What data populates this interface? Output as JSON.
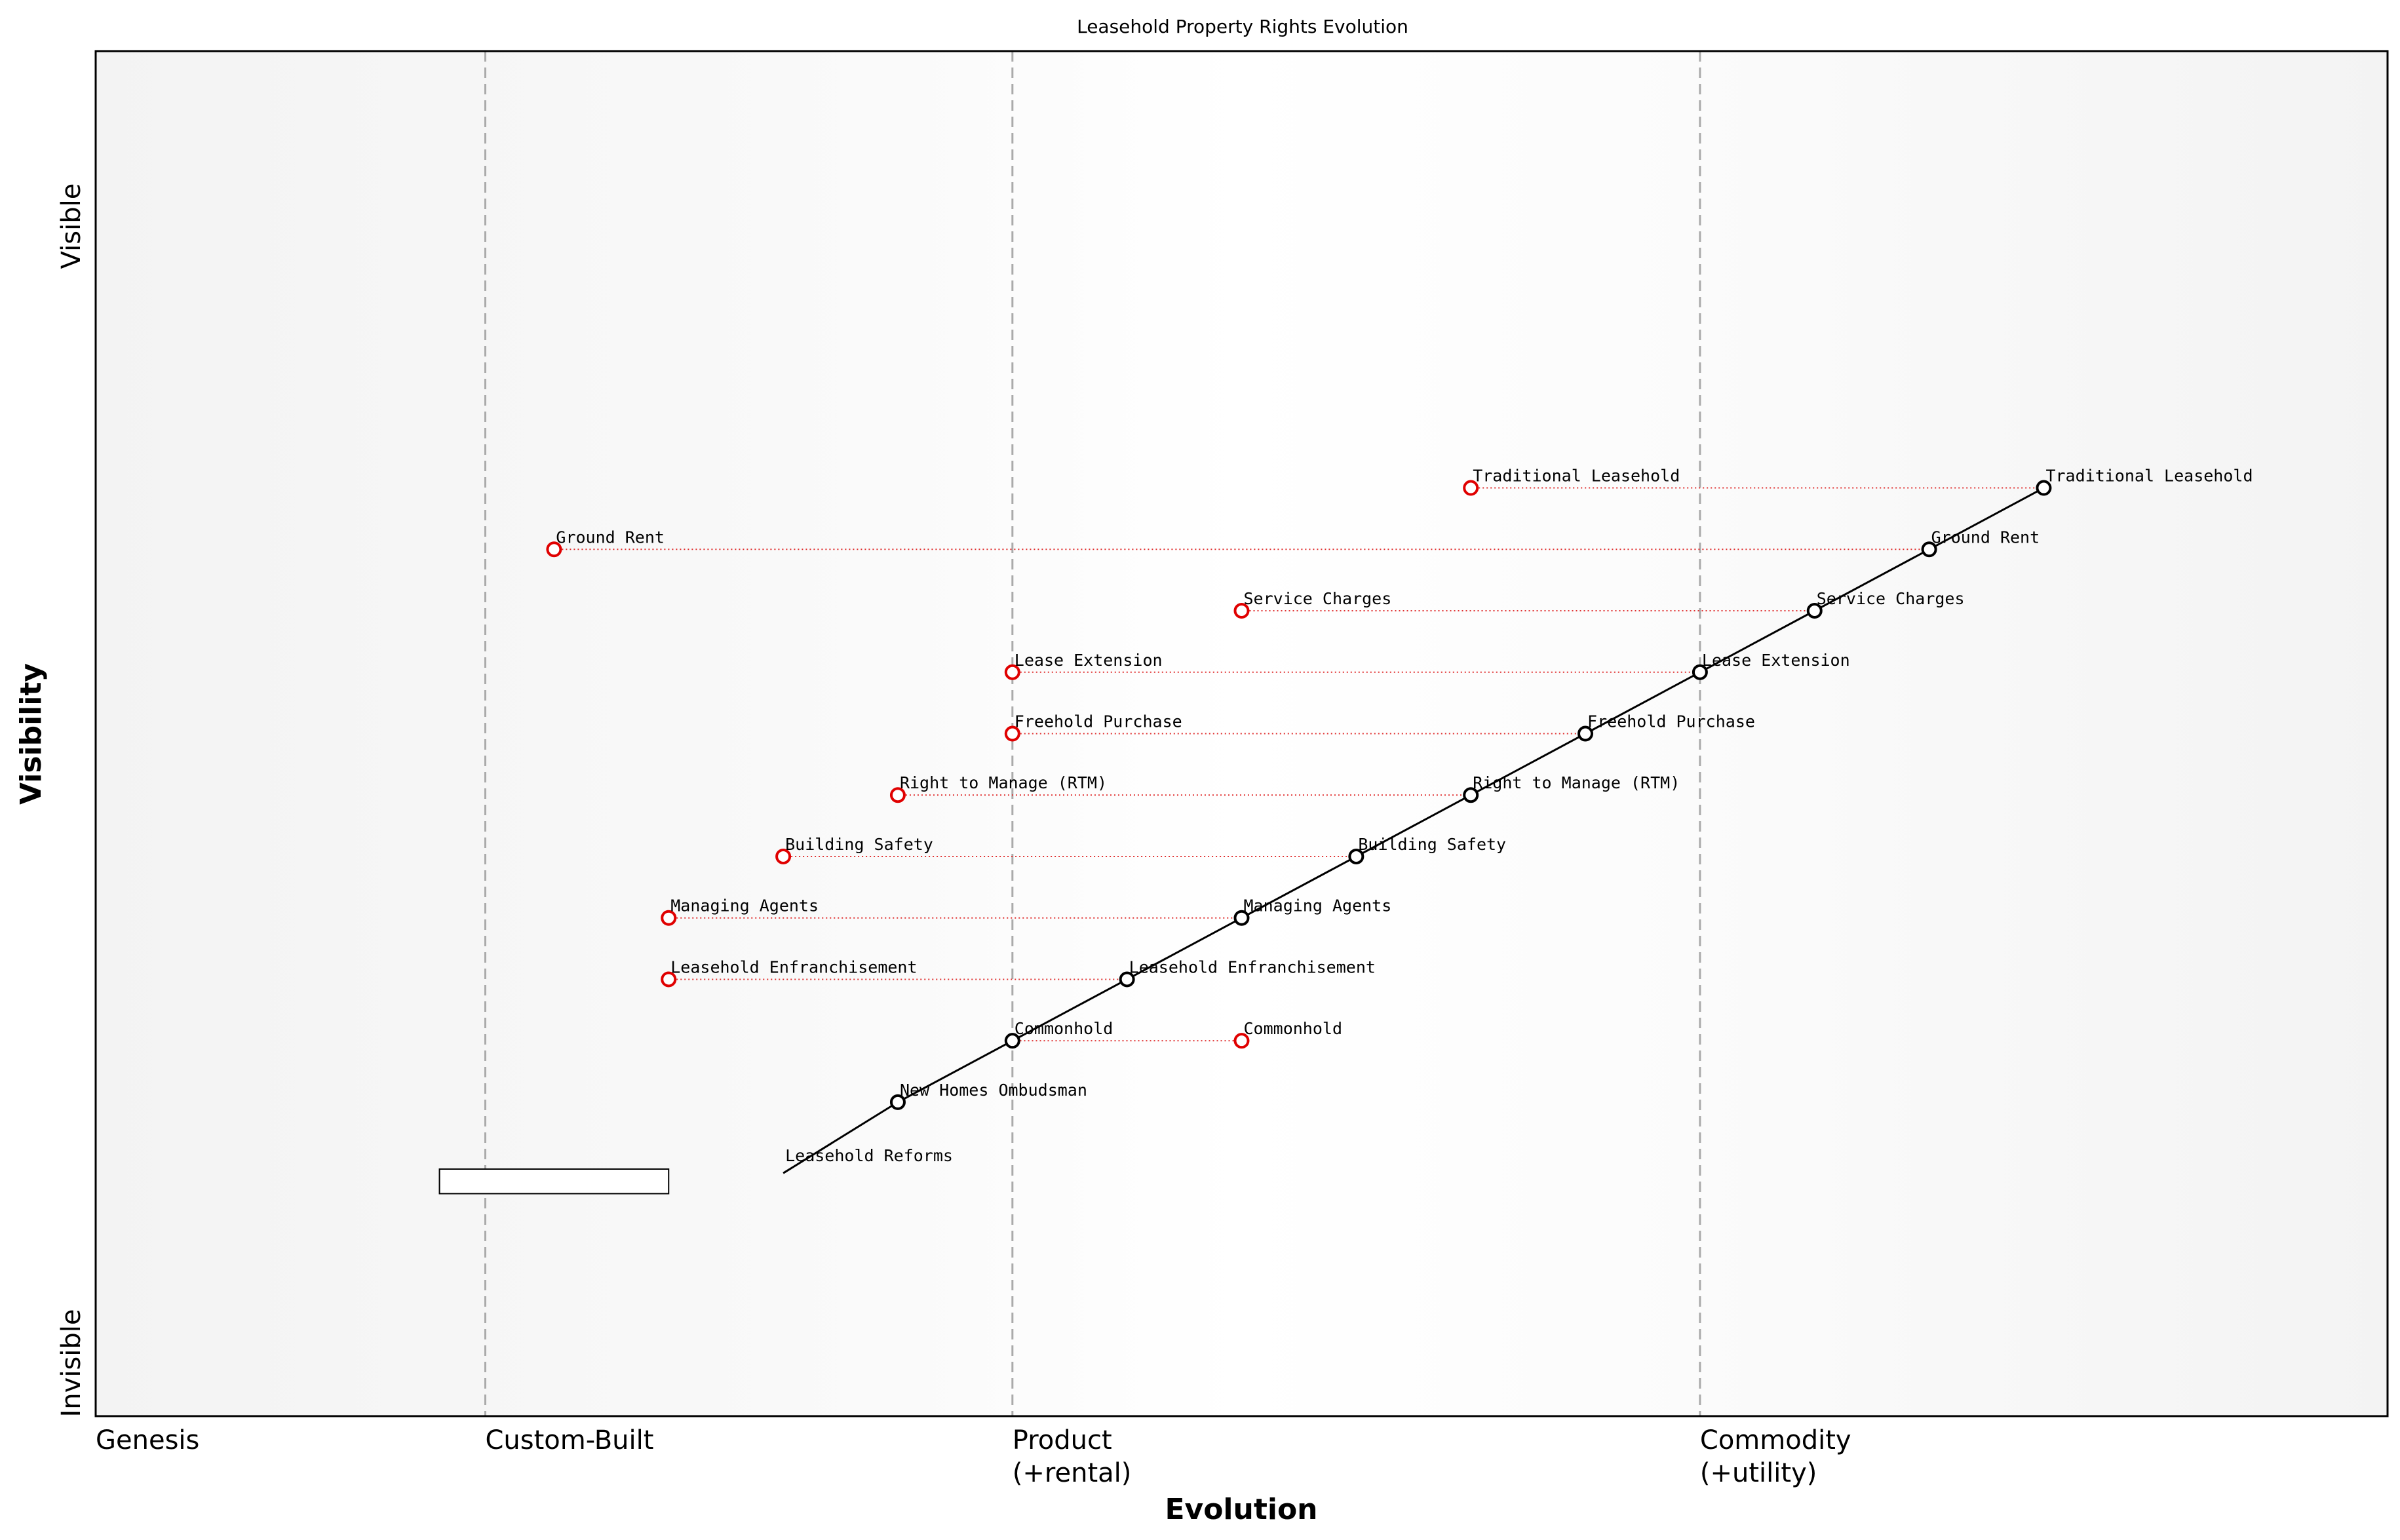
{
  "title": "Leasehold Property Rights Evolution",
  "x_axis_title": "Evolution",
  "y_axis_title": "Visibility",
  "visibility_labels": {
    "top": "Visible",
    "bottom": "Invisible"
  },
  "stages": [
    {
      "lines": [
        "Genesis"
      ],
      "position": 0.0
    },
    {
      "lines": [
        "Custom-Built"
      ],
      "position": 0.17
    },
    {
      "lines": [
        "Product",
        "(+rental)"
      ],
      "position": 0.4
    },
    {
      "lines": [
        "Commodity",
        "(+utility)"
      ],
      "position": 0.7
    }
  ],
  "colors": {
    "current": "#000000",
    "future": "#e00000",
    "link": "#e03030",
    "stage_line": "#aaaaaa"
  },
  "chart_data": {
    "type": "scatter",
    "xlim": [
      0,
      1
    ],
    "ylim": [
      0,
      1
    ],
    "components": [
      {
        "name": "Traditional Leasehold",
        "evolution": 0.85,
        "visibility": 0.68,
        "future_evolution": 0.6
      },
      {
        "name": "Ground Rent",
        "evolution": 0.8,
        "visibility": 0.635,
        "future_evolution": 0.2
      },
      {
        "name": "Service Charges",
        "evolution": 0.75,
        "visibility": 0.59,
        "future_evolution": 0.5
      },
      {
        "name": "Lease Extension",
        "evolution": 0.7,
        "visibility": 0.545,
        "future_evolution": 0.4
      },
      {
        "name": "Freehold Purchase",
        "evolution": 0.65,
        "visibility": 0.5,
        "future_evolution": 0.4
      },
      {
        "name": "Right to Manage (RTM)",
        "evolution": 0.6,
        "visibility": 0.455,
        "future_evolution": 0.35
      },
      {
        "name": "Building Safety",
        "evolution": 0.55,
        "visibility": 0.41,
        "future_evolution": 0.3
      },
      {
        "name": "Managing Agents",
        "evolution": 0.5,
        "visibility": 0.365,
        "future_evolution": 0.25
      },
      {
        "name": "Leasehold Enfranchisement",
        "evolution": 0.45,
        "visibility": 0.32,
        "future_evolution": 0.25
      },
      {
        "name": "Commonhold",
        "evolution": 0.4,
        "visibility": 0.275,
        "future_evolution": 0.5
      },
      {
        "name": "New Homes Ombudsman",
        "evolution": 0.35,
        "visibility": 0.23
      },
      {
        "name": "Leasehold Reforms",
        "evolution": 0.3,
        "visibility": 0.178
      }
    ],
    "chain_end": {
      "evolution": 0.3,
      "visibility": 0.178
    },
    "annotation_box": {
      "evolution_from": 0.15,
      "evolution_to": 0.25,
      "visibility_from": 0.163,
      "visibility_to": 0.181
    }
  }
}
